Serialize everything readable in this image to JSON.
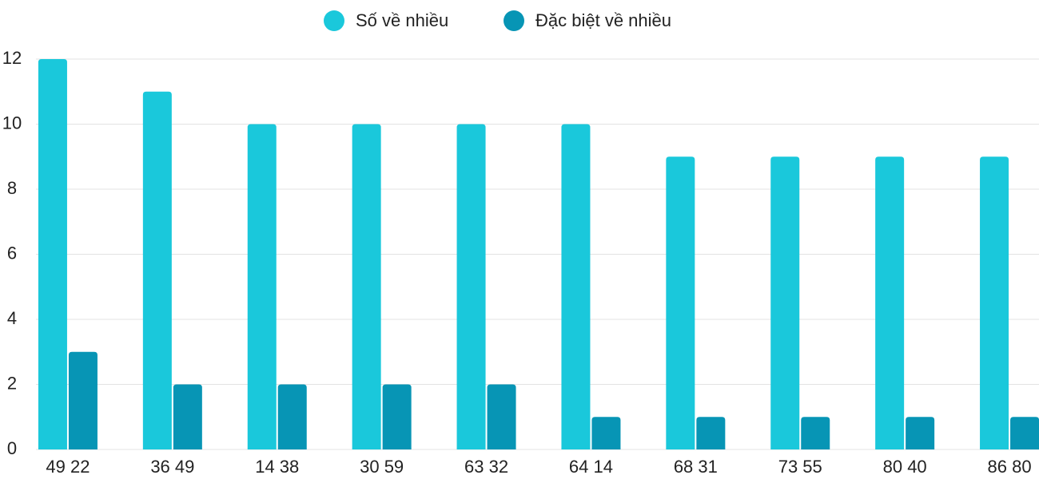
{
  "chart_data": {
    "type": "bar",
    "categories": [
      "49 22",
      "36 49",
      "14 38",
      "30 59",
      "63 32",
      "64 14",
      "68 31",
      "73 55",
      "80 40",
      "86 80"
    ],
    "series": [
      {
        "name": "Số về nhiều",
        "color": "#1ac8db",
        "values": [
          12,
          11,
          10,
          10,
          10,
          10,
          9,
          9,
          9,
          9
        ]
      },
      {
        "name": "Đặc biệt về nhiều",
        "color": "#0795b5",
        "values": [
          3,
          2,
          2,
          2,
          2,
          1,
          1,
          1,
          1,
          1
        ]
      }
    ],
    "ylim": [
      0,
      12
    ],
    "yticks": [
      0,
      2,
      4,
      6,
      8,
      10,
      12
    ],
    "grid": true,
    "legend": "top"
  }
}
